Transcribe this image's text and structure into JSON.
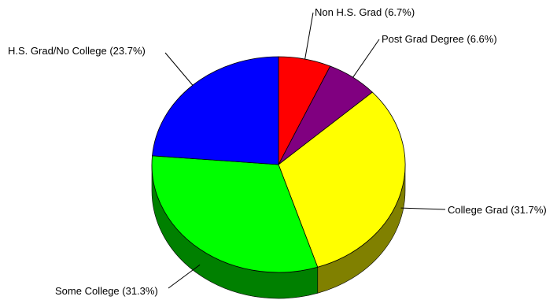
{
  "chart_data": {
    "type": "pie",
    "title": "",
    "three_d": true,
    "slices": [
      {
        "label": "Non H.S. Grad",
        "value": 6.7,
        "label_text": "Non H.S. Grad (6.7%)",
        "color": "#ff0000",
        "side_color": "#800000"
      },
      {
        "label": "Post Grad Degree",
        "value": 6.6,
        "label_text": "Post Grad Degree (6.6%)",
        "color": "#800080",
        "side_color": "#400040"
      },
      {
        "label": "College Grad",
        "value": 31.7,
        "label_text": "College Grad (31.7%)",
        "color": "#ffff00",
        "side_color": "#808000"
      },
      {
        "label": "Some College",
        "value": 31.3,
        "label_text": "Some College (31.3%)",
        "color": "#00ff00",
        "side_color": "#008000"
      },
      {
        "label": "H.S. Grad/No College",
        "value": 23.7,
        "label_text": "H.S. Grad/No College (23.7%)",
        "color": "#0000ff",
        "side_color": "#000080"
      }
    ]
  }
}
